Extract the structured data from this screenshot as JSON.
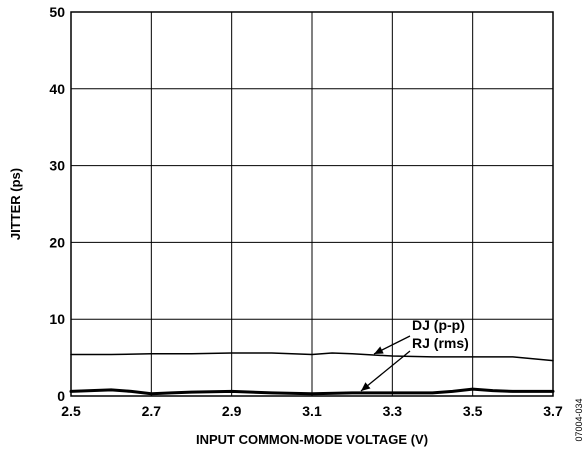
{
  "chart_data": {
    "type": "line",
    "xlabel": "INPUT COMMON-MODE VOLTAGE (V)",
    "ylabel": "JITTER (ps)",
    "xlim": [
      2.5,
      3.7
    ],
    "ylim": [
      0,
      50
    ],
    "x_ticks": [
      "2.5",
      "2.7",
      "2.9",
      "3.1",
      "3.3",
      "3.5",
      "3.7"
    ],
    "y_ticks": [
      "0",
      "10",
      "20",
      "30",
      "40",
      "50"
    ],
    "grid": true,
    "series": [
      {
        "name": "DJ (p-p)",
        "x": [
          2.5,
          2.6,
          2.7,
          2.8,
          2.9,
          3.0,
          3.1,
          3.15,
          3.2,
          3.3,
          3.4,
          3.5,
          3.6,
          3.7
        ],
        "y": [
          5.4,
          5.4,
          5.5,
          5.5,
          5.6,
          5.6,
          5.4,
          5.6,
          5.5,
          5.2,
          5.1,
          5.1,
          5.1,
          4.6
        ],
        "line_weight": "thin"
      },
      {
        "name": "RJ (rms)",
        "x": [
          2.5,
          2.55,
          2.6,
          2.65,
          2.7,
          2.75,
          2.8,
          2.9,
          3.0,
          3.1,
          3.2,
          3.3,
          3.4,
          3.45,
          3.5,
          3.55,
          3.6,
          3.7
        ],
        "y": [
          0.6,
          0.7,
          0.8,
          0.6,
          0.3,
          0.4,
          0.5,
          0.6,
          0.4,
          0.3,
          0.4,
          0.4,
          0.4,
          0.6,
          0.9,
          0.7,
          0.6,
          0.6
        ],
        "line_weight": "thick"
      }
    ],
    "annotations": [
      {
        "text": "DJ (p-p)",
        "points_to_x": 3.3,
        "points_to_y": 5.2
      },
      {
        "text": "RJ (rms)",
        "points_to_x": 3.24,
        "points_to_y": 0.4
      }
    ],
    "figure_id": "07004-034"
  }
}
